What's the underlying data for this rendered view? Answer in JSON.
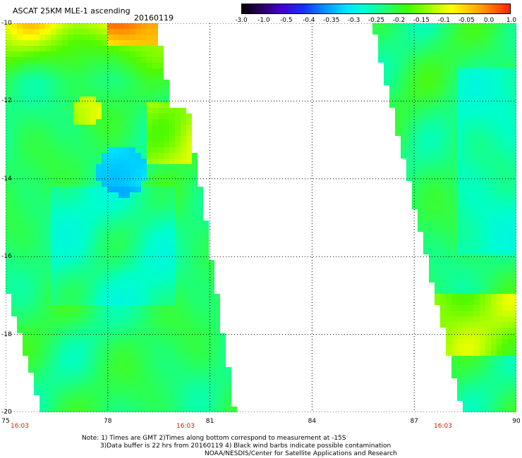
{
  "header": {
    "title": "ASCAT 25KM MLE-1 ascending",
    "date": "20160119"
  },
  "colorbar": {
    "labels": [
      "-3.0",
      "-1.0",
      "-0.5",
      "-0.4",
      "-0.35",
      "-0.3",
      "-0.25",
      "-0.2",
      "-0.15",
      "-0.1",
      "-0.05",
      "0.0",
      "1.0"
    ],
    "colors": [
      "#1a001f",
      "#3a0070",
      "#4400cc",
      "#1530ff",
      "#0a80ff",
      "#00ccff",
      "#00ffe0",
      "#30ff60",
      "#5bff00",
      "#b8ff00",
      "#ffee00",
      "#ff9900",
      "#ff3300"
    ]
  },
  "map": {
    "lat_labels": [
      "-10",
      "-12",
      "-14",
      "-16",
      "-18",
      "-20"
    ],
    "lon_labels": [
      "75",
      "78",
      "81",
      "84",
      "87",
      "90"
    ],
    "lon_range": [
      75,
      90
    ],
    "lat_range": [
      -20,
      -10
    ],
    "pass_times": [
      "16:03",
      "16:03",
      "16:03"
    ]
  },
  "notes": [
    "Note: 1) Times are GMT 2)Times along bottom correspond to measurement at -15S",
    "3)Data buffer is 22 hrs from 20160119 4) Black wind barbs indicate possible contamination",
    "NOAA/NESDIS/Center for Satellite Applications and Research"
  ]
}
